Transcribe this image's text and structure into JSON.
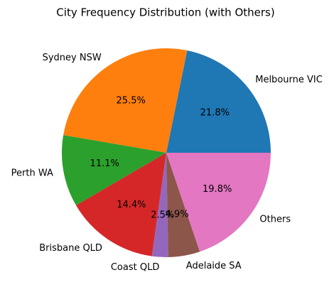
{
  "chart_data": {
    "type": "pie",
    "title": "City Frequency Distribution (with Others)",
    "categories": [
      "Melbourne VIC",
      "Sydney NSW",
      "Perth WA",
      "Brisbane QLD",
      "Coast QLD",
      "Adelaide SA",
      "Others"
    ],
    "values": [
      21.8,
      25.5,
      11.1,
      14.4,
      2.5,
      4.9,
      19.8
    ],
    "value_labels": [
      "21.8%",
      "25.5%",
      "11.1%",
      "14.4%",
      "2.5%",
      "4.9%",
      "19.8%"
    ],
    "colors": [
      "#1f77b4",
      "#ff7f0e",
      "#2ca02c",
      "#d62728",
      "#9467bd",
      "#8c564b",
      "#e377c2"
    ]
  }
}
